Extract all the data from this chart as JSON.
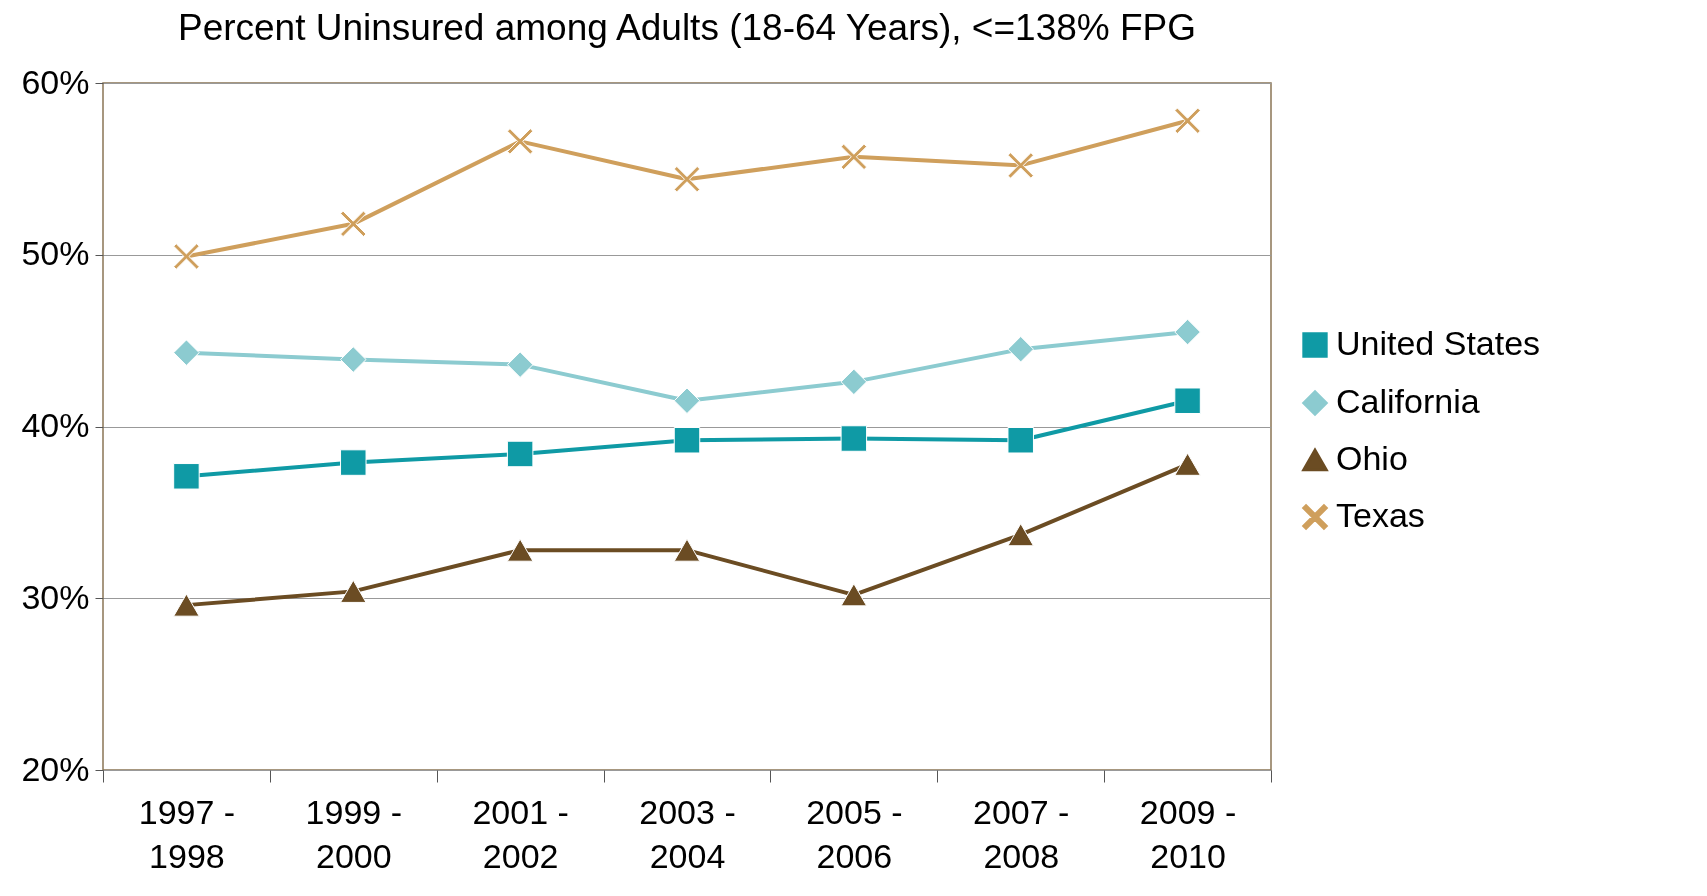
{
  "chart_data": {
    "type": "line",
    "title": "Percent Uninsured among Adults (18-64 Years), <=138% FPG",
    "categories": [
      "1997 - 1998",
      "1999 - 2000",
      "2001 - 2002",
      "2003 - 2004",
      "2005 - 2006",
      "2007 - 2008",
      "2009 - 2010"
    ],
    "series": [
      {
        "name": "United States",
        "color": "#0f9aa5",
        "marker": "square",
        "values": [
          37.1,
          37.9,
          38.4,
          39.2,
          39.3,
          39.2,
          41.5
        ]
      },
      {
        "name": "California",
        "color": "#8ccbd0",
        "marker": "diamond",
        "values": [
          44.3,
          43.9,
          43.6,
          41.5,
          42.6,
          44.5,
          45.5
        ]
      },
      {
        "name": "Ohio",
        "color": "#6b4c23",
        "marker": "triangle",
        "values": [
          29.6,
          30.4,
          32.8,
          32.8,
          30.2,
          33.7,
          37.8
        ]
      },
      {
        "name": "Texas",
        "color": "#cf9f5c",
        "marker": "cross",
        "values": [
          49.9,
          51.8,
          56.6,
          54.4,
          55.7,
          55.2,
          57.8
        ]
      }
    ],
    "ylim": [
      20,
      60
    ],
    "yticks": [
      {
        "value": 20,
        "label": "20%"
      },
      {
        "value": 30,
        "label": "30%"
      },
      {
        "value": 40,
        "label": "40%"
      },
      {
        "value": 50,
        "label": "50%"
      },
      {
        "value": 60,
        "label": "60%"
      }
    ],
    "grid": "y",
    "legend": "right",
    "line_style": "solid"
  }
}
